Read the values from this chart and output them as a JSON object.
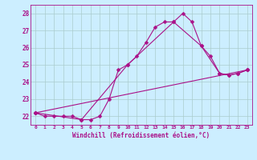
{
  "xlabel": "Windchill (Refroidissement éolien,°C)",
  "bg_color": "#cceeff",
  "line_color": "#aa1188",
  "grid_color": "#aacccc",
  "xlim": [
    -0.5,
    23.5
  ],
  "ylim": [
    21.5,
    28.5
  ],
  "yticks": [
    22,
    23,
    24,
    25,
    26,
    27,
    28
  ],
  "xtick_labels": [
    "0",
    "1",
    "2",
    "3",
    "4",
    "5",
    "6",
    "7",
    "8",
    "9",
    "10",
    "11",
    "12",
    "13",
    "14",
    "15",
    "16",
    "17",
    "18",
    "19",
    "20",
    "21",
    "22",
    "23"
  ],
  "xtick_vals": [
    0,
    1,
    2,
    3,
    4,
    5,
    6,
    7,
    8,
    9,
    10,
    11,
    12,
    13,
    14,
    15,
    16,
    17,
    18,
    19,
    20,
    21,
    22,
    23
  ],
  "series1_x": [
    0,
    1,
    2,
    3,
    4,
    5,
    6,
    7,
    8,
    9,
    10,
    11,
    12,
    13,
    14,
    15,
    16,
    17,
    18,
    19,
    20,
    21,
    22,
    23
  ],
  "series1_y": [
    22.2,
    22.0,
    22.0,
    22.0,
    22.0,
    21.8,
    21.8,
    22.0,
    23.0,
    24.7,
    25.0,
    25.5,
    26.3,
    27.2,
    27.5,
    27.5,
    28.0,
    27.5,
    26.1,
    25.5,
    24.5,
    24.4,
    24.5,
    24.7
  ],
  "series2_x": [
    0,
    5,
    10,
    15,
    18,
    20,
    21,
    22,
    23
  ],
  "series2_y": [
    22.2,
    21.8,
    25.0,
    27.5,
    26.1,
    24.5,
    24.4,
    24.5,
    24.7
  ],
  "series3_x": [
    0,
    23
  ],
  "series3_y": [
    22.2,
    24.7
  ],
  "markersize": 2.5,
  "linewidth": 0.8
}
